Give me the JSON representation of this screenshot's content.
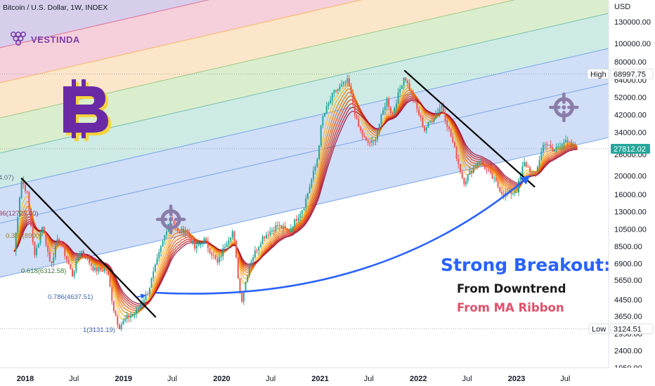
{
  "header": {
    "symbol_line": "Bitcoin / U.S. Dollar, 1W, INDEX",
    "brand_name": "VESTINDA"
  },
  "axis": {
    "currency_label": "USD"
  },
  "chart_data": {
    "type": "candlestick",
    "title": "Bitcoin / U.S. Dollar, 1W, INDEX",
    "y_scale": "log",
    "ylim": [
      1950,
      170000
    ],
    "xlim": [
      "2017-11-15",
      "2023-09-01"
    ],
    "y_ticks": [
      "130000.00",
      "100000.00",
      "80000.00",
      "64000.00",
      "52000.00",
      "42000.00",
      "34000.00",
      "26000.00",
      "20000.00",
      "16000.00",
      "13000.00",
      "10500.00",
      "8500.00",
      "6900.00",
      "5650.00",
      "4450.00",
      "3650.00",
      "2950.00",
      "2400.00",
      "1950.00"
    ],
    "x_ticks": [
      {
        "label": "2018",
        "date": "2018-01-01",
        "bold": true
      },
      {
        "label": "Jul",
        "date": "2018-07-01",
        "bold": false
      },
      {
        "label": "2019",
        "date": "2019-01-01",
        "bold": true
      },
      {
        "label": "Jul",
        "date": "2019-07-01",
        "bold": false
      },
      {
        "label": "2020",
        "date": "2020-01-01",
        "bold": true
      },
      {
        "label": "Jul",
        "date": "2020-07-01",
        "bold": false
      },
      {
        "label": "2021",
        "date": "2021-01-01",
        "bold": true
      },
      {
        "label": "Jul",
        "date": "2021-07-01",
        "bold": false
      },
      {
        "label": "2022",
        "date": "2022-01-01",
        "bold": true
      },
      {
        "label": "Jul",
        "date": "2022-07-01",
        "bold": false
      },
      {
        "label": "2023",
        "date": "2023-01-01",
        "bold": true
      },
      {
        "label": "Jul",
        "date": "2023-07-01",
        "bold": false
      }
    ],
    "price_path": [
      [
        "2017-11-20",
        8000
      ],
      [
        "2017-12-17",
        19000
      ],
      [
        "2018-01-07",
        16500
      ],
      [
        "2018-02-05",
        7500
      ],
      [
        "2018-03-05",
        11000
      ],
      [
        "2018-04-05",
        6800
      ],
      [
        "2018-05-05",
        9500
      ],
      [
        "2018-06-25",
        6000
      ],
      [
        "2018-07-25",
        8200
      ],
      [
        "2018-09-15",
        6400
      ],
      [
        "2018-11-01",
        6400
      ],
      [
        "2018-11-25",
        4000
      ],
      [
        "2018-12-15",
        3200
      ],
      [
        "2019-01-15",
        3600
      ],
      [
        "2019-02-15",
        3800
      ],
      [
        "2019-04-02",
        4900
      ],
      [
        "2019-05-15",
        7900
      ],
      [
        "2019-06-26",
        12500
      ],
      [
        "2019-07-20",
        10000
      ],
      [
        "2019-08-20",
        10500
      ],
      [
        "2019-09-25",
        8200
      ],
      [
        "2019-10-26",
        9300
      ],
      [
        "2019-12-17",
        6900
      ],
      [
        "2020-01-15",
        8800
      ],
      [
        "2020-02-12",
        10300
      ],
      [
        "2020-03-13",
        4300
      ],
      [
        "2020-04-15",
        7000
      ],
      [
        "2020-06-01",
        9500
      ],
      [
        "2020-07-27",
        11000
      ],
      [
        "2020-09-05",
        10200
      ],
      [
        "2020-11-01",
        13800
      ],
      [
        "2020-12-20",
        24000
      ],
      [
        "2021-01-08",
        40000
      ],
      [
        "2021-02-20",
        55000
      ],
      [
        "2021-04-14",
        63500
      ],
      [
        "2021-05-20",
        37000
      ],
      [
        "2021-06-22",
        30000
      ],
      [
        "2021-07-20",
        30000
      ],
      [
        "2021-09-05",
        51000
      ],
      [
        "2021-09-25",
        42000
      ],
      [
        "2021-11-10",
        68000
      ],
      [
        "2022-01-24",
        35000
      ],
      [
        "2022-03-28",
        47000
      ],
      [
        "2022-05-12",
        29000
      ],
      [
        "2022-06-18",
        18500
      ],
      [
        "2022-08-14",
        24400
      ],
      [
        "2022-10-10",
        19000
      ],
      [
        "2022-11-12",
        16000
      ],
      [
        "2023-01-01",
        16600
      ],
      [
        "2023-01-28",
        23500
      ],
      [
        "2023-03-10",
        20000
      ],
      [
        "2023-04-14",
        30500
      ],
      [
        "2023-05-15",
        27000
      ],
      [
        "2023-06-22",
        30500
      ],
      [
        "2023-08-20",
        27812
      ]
    ],
    "price_labels": [
      {
        "text": "High",
        "value": "68997.75"
      },
      {
        "text": "Low",
        "value": "3124.51"
      },
      {
        "text": "",
        "value": "27812.02"
      }
    ],
    "fib_channel": {
      "levels": [
        {
          "label": "4.07)"
        },
        {
          "label": "36(12725.60)"
        },
        {
          "label": "0.382(8900)"
        },
        {
          "label": "0.618(6312.58)"
        },
        {
          "label": "0.786(4637.51)"
        },
        {
          "label": "1(3131.19)"
        }
      ],
      "band_colors": [
        "#8e7cc3",
        "#e06690",
        "#f5b35e",
        "#93c47d",
        "#6fb8a8",
        "#6d9eeb"
      ]
    },
    "annotations": [
      {
        "text": "Strong Breakout:"
      },
      {
        "text": "From Downtrend"
      },
      {
        "text": "From MA Ribbon"
      }
    ],
    "colors": {
      "up": "#26a69a",
      "down": "#ef5350",
      "ribbon": [
        "#fbc02d",
        "#f9a825",
        "#f57c00",
        "#ef6c00",
        "#e65100",
        "#d84315",
        "#c62828",
        "#b71c1c",
        "#9c1040"
      ],
      "trendline": "#000000",
      "arrow": "#2962ff",
      "target": "#8a7ca8",
      "bitcoin": "#6a2aa6"
    }
  }
}
